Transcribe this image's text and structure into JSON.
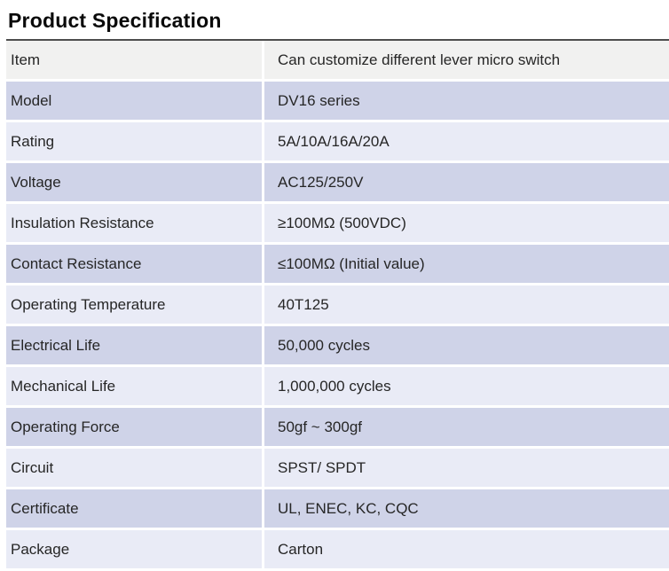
{
  "title": "Product Specification",
  "colors": {
    "header_row_bg": "#f1f1f0",
    "row_alt_dark": "#cfd3e8",
    "row_alt_light": "#e9ebf6",
    "top_border": "#4d4d4d",
    "text": "#262626",
    "row_gap": "#ffffff",
    "page_bg": "#ffffff"
  },
  "table": {
    "rows": [
      {
        "label": "Item",
        "value": "Can customize different lever micro switch",
        "shade": "header"
      },
      {
        "label": "Model",
        "value": "DV16 series",
        "shade": "dark"
      },
      {
        "label": "Rating",
        "value": "5A/10A/16A/20A",
        "shade": "light"
      },
      {
        "label": "Voltage",
        "value": "AC125/250V",
        "shade": "dark"
      },
      {
        "label": "Insulation Resistance",
        "value": "≥100MΩ (500VDC)",
        "shade": "light"
      },
      {
        "label": "Contact Resistance",
        "value": "≤100MΩ (Initial value)",
        "shade": "dark"
      },
      {
        "label": "Operating Temperature",
        "value": "40T125",
        "shade": "light"
      },
      {
        "label": "Electrical Life",
        "value": "50,000 cycles",
        "shade": "dark"
      },
      {
        "label": "Mechanical Life",
        "value": "1,000,000 cycles",
        "shade": "light"
      },
      {
        "label": "Operating Force",
        "value": "50gf ~ 300gf",
        "shade": "dark"
      },
      {
        "label": "Circuit",
        "value": "SPST/ SPDT",
        "shade": "light"
      },
      {
        "label": "Certificate",
        "value": "UL, ENEC, KC, CQC",
        "shade": "dark"
      },
      {
        "label": "Package",
        "value": "Carton",
        "shade": "light"
      }
    ]
  }
}
